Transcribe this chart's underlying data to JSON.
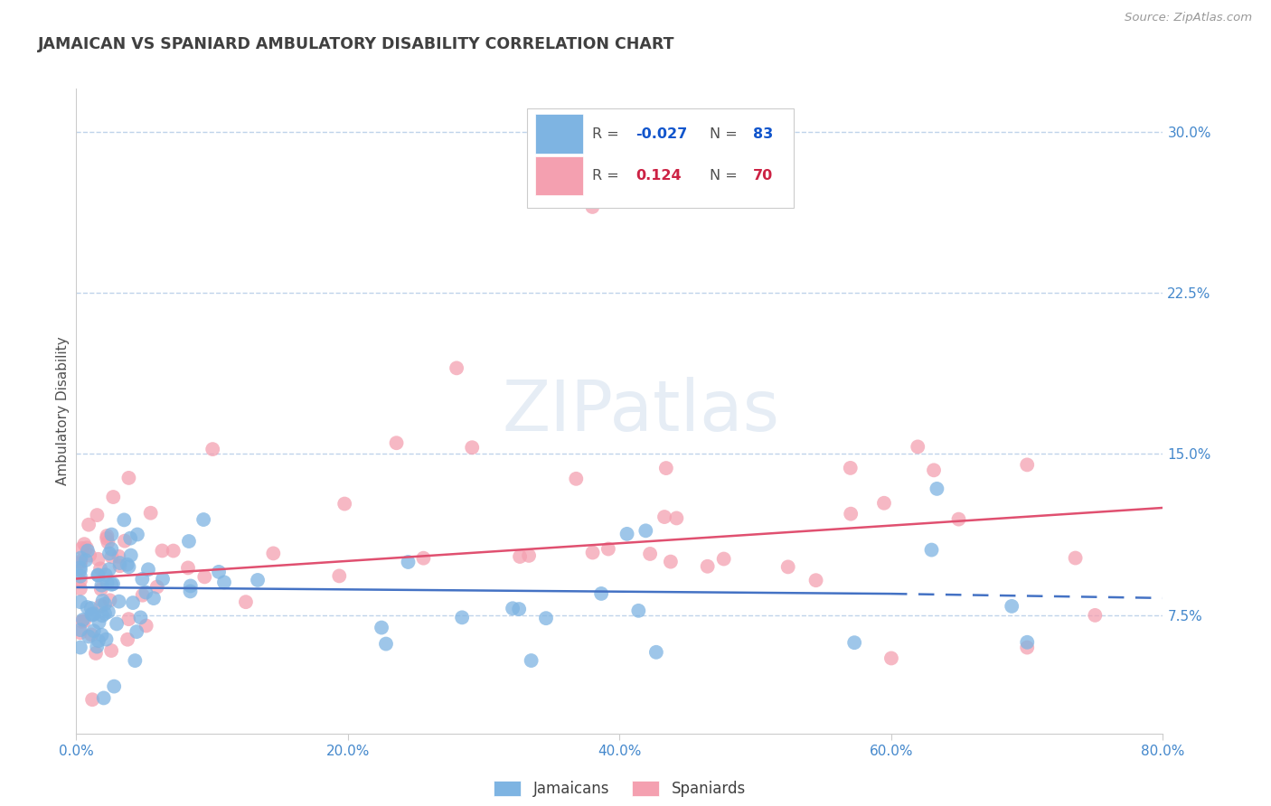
{
  "title": "JAMAICAN VS SPANIARD AMBULATORY DISABILITY CORRELATION CHART",
  "source": "Source: ZipAtlas.com",
  "ylabel": "Ambulatory Disability",
  "xlabel_ticks": [
    "0.0%",
    "20.0%",
    "40.0%",
    "60.0%",
    "80.0%"
  ],
  "xlabel_vals": [
    0.0,
    20.0,
    40.0,
    60.0,
    80.0
  ],
  "ylabel_ticks": [
    "7.5%",
    "15.0%",
    "22.5%",
    "30.0%"
  ],
  "ylabel_vals": [
    7.5,
    15.0,
    22.5,
    30.0
  ],
  "xlim": [
    0.0,
    80.0
  ],
  "ylim": [
    2.0,
    32.0
  ],
  "jamaican_color": "#7eb4e2",
  "spaniard_color": "#f4a0b0",
  "jamaican_R": -0.027,
  "jamaican_N": 83,
  "spaniard_R": 0.124,
  "spaniard_N": 70,
  "trendline_blue": "#4472c4",
  "trendline_pink": "#e05070",
  "background_color": "#ffffff",
  "grid_color": "#b8cfe8",
  "watermark": "ZIPatlas",
  "title_color": "#404040",
  "axis_label_color": "#4488cc",
  "legend_R_color_blue": "#1155cc",
  "legend_R_color_pink": "#cc2244"
}
